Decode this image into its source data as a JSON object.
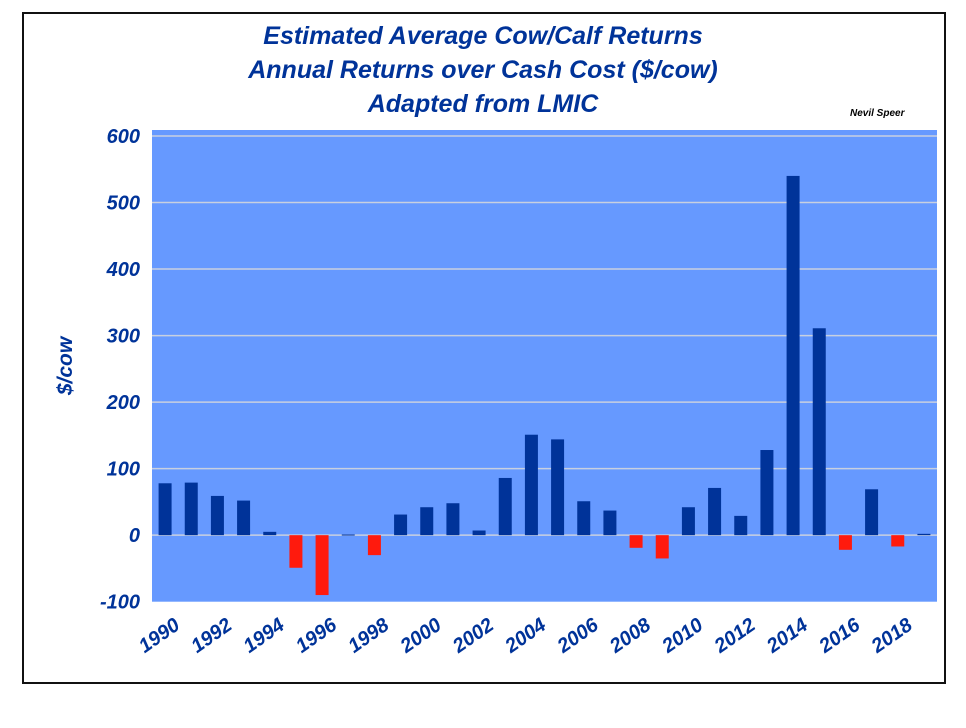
{
  "chart_data": {
    "type": "bar",
    "title": [
      "Estimated Average Cow/Calf Returns",
      "Annual Returns over Cash Cost ($/cow)",
      "Adapted from LMIC"
    ],
    "credit": "Nevil Speer",
    "ylabel": "$/cow",
    "xlabel": "",
    "ylim": [
      -100,
      600
    ],
    "yticks": [
      600,
      500,
      400,
      300,
      200,
      100,
      0,
      -100
    ],
    "grid": true,
    "x": [
      1990,
      1991,
      1992,
      1993,
      1994,
      1995,
      1996,
      1997,
      1998,
      1999,
      2000,
      2001,
      2002,
      2003,
      2004,
      2005,
      2006,
      2007,
      2008,
      2009,
      2010,
      2011,
      2012,
      2013,
      2014,
      2015,
      2016,
      2017,
      2018,
      2019
    ],
    "xtick_labels": [
      "1990",
      "1992",
      "1994",
      "1996",
      "1998",
      "2000",
      "2002",
      "2004",
      "2006",
      "2008",
      "2010",
      "2012",
      "2014",
      "2016",
      "2018"
    ],
    "values": [
      78,
      79,
      59,
      52,
      5,
      -49,
      -90,
      1,
      -30,
      31,
      42,
      48,
      7,
      86,
      151,
      144,
      51,
      37,
      -19,
      -35,
      42,
      71,
      29,
      128,
      540,
      311,
      -22,
      69,
      -17,
      2
    ],
    "colors": {
      "positive": "#003399",
      "negative": "#ff1a0d",
      "plot_bg": "#6699ff",
      "grid": "#c8d0e0",
      "text": "#003399"
    }
  }
}
